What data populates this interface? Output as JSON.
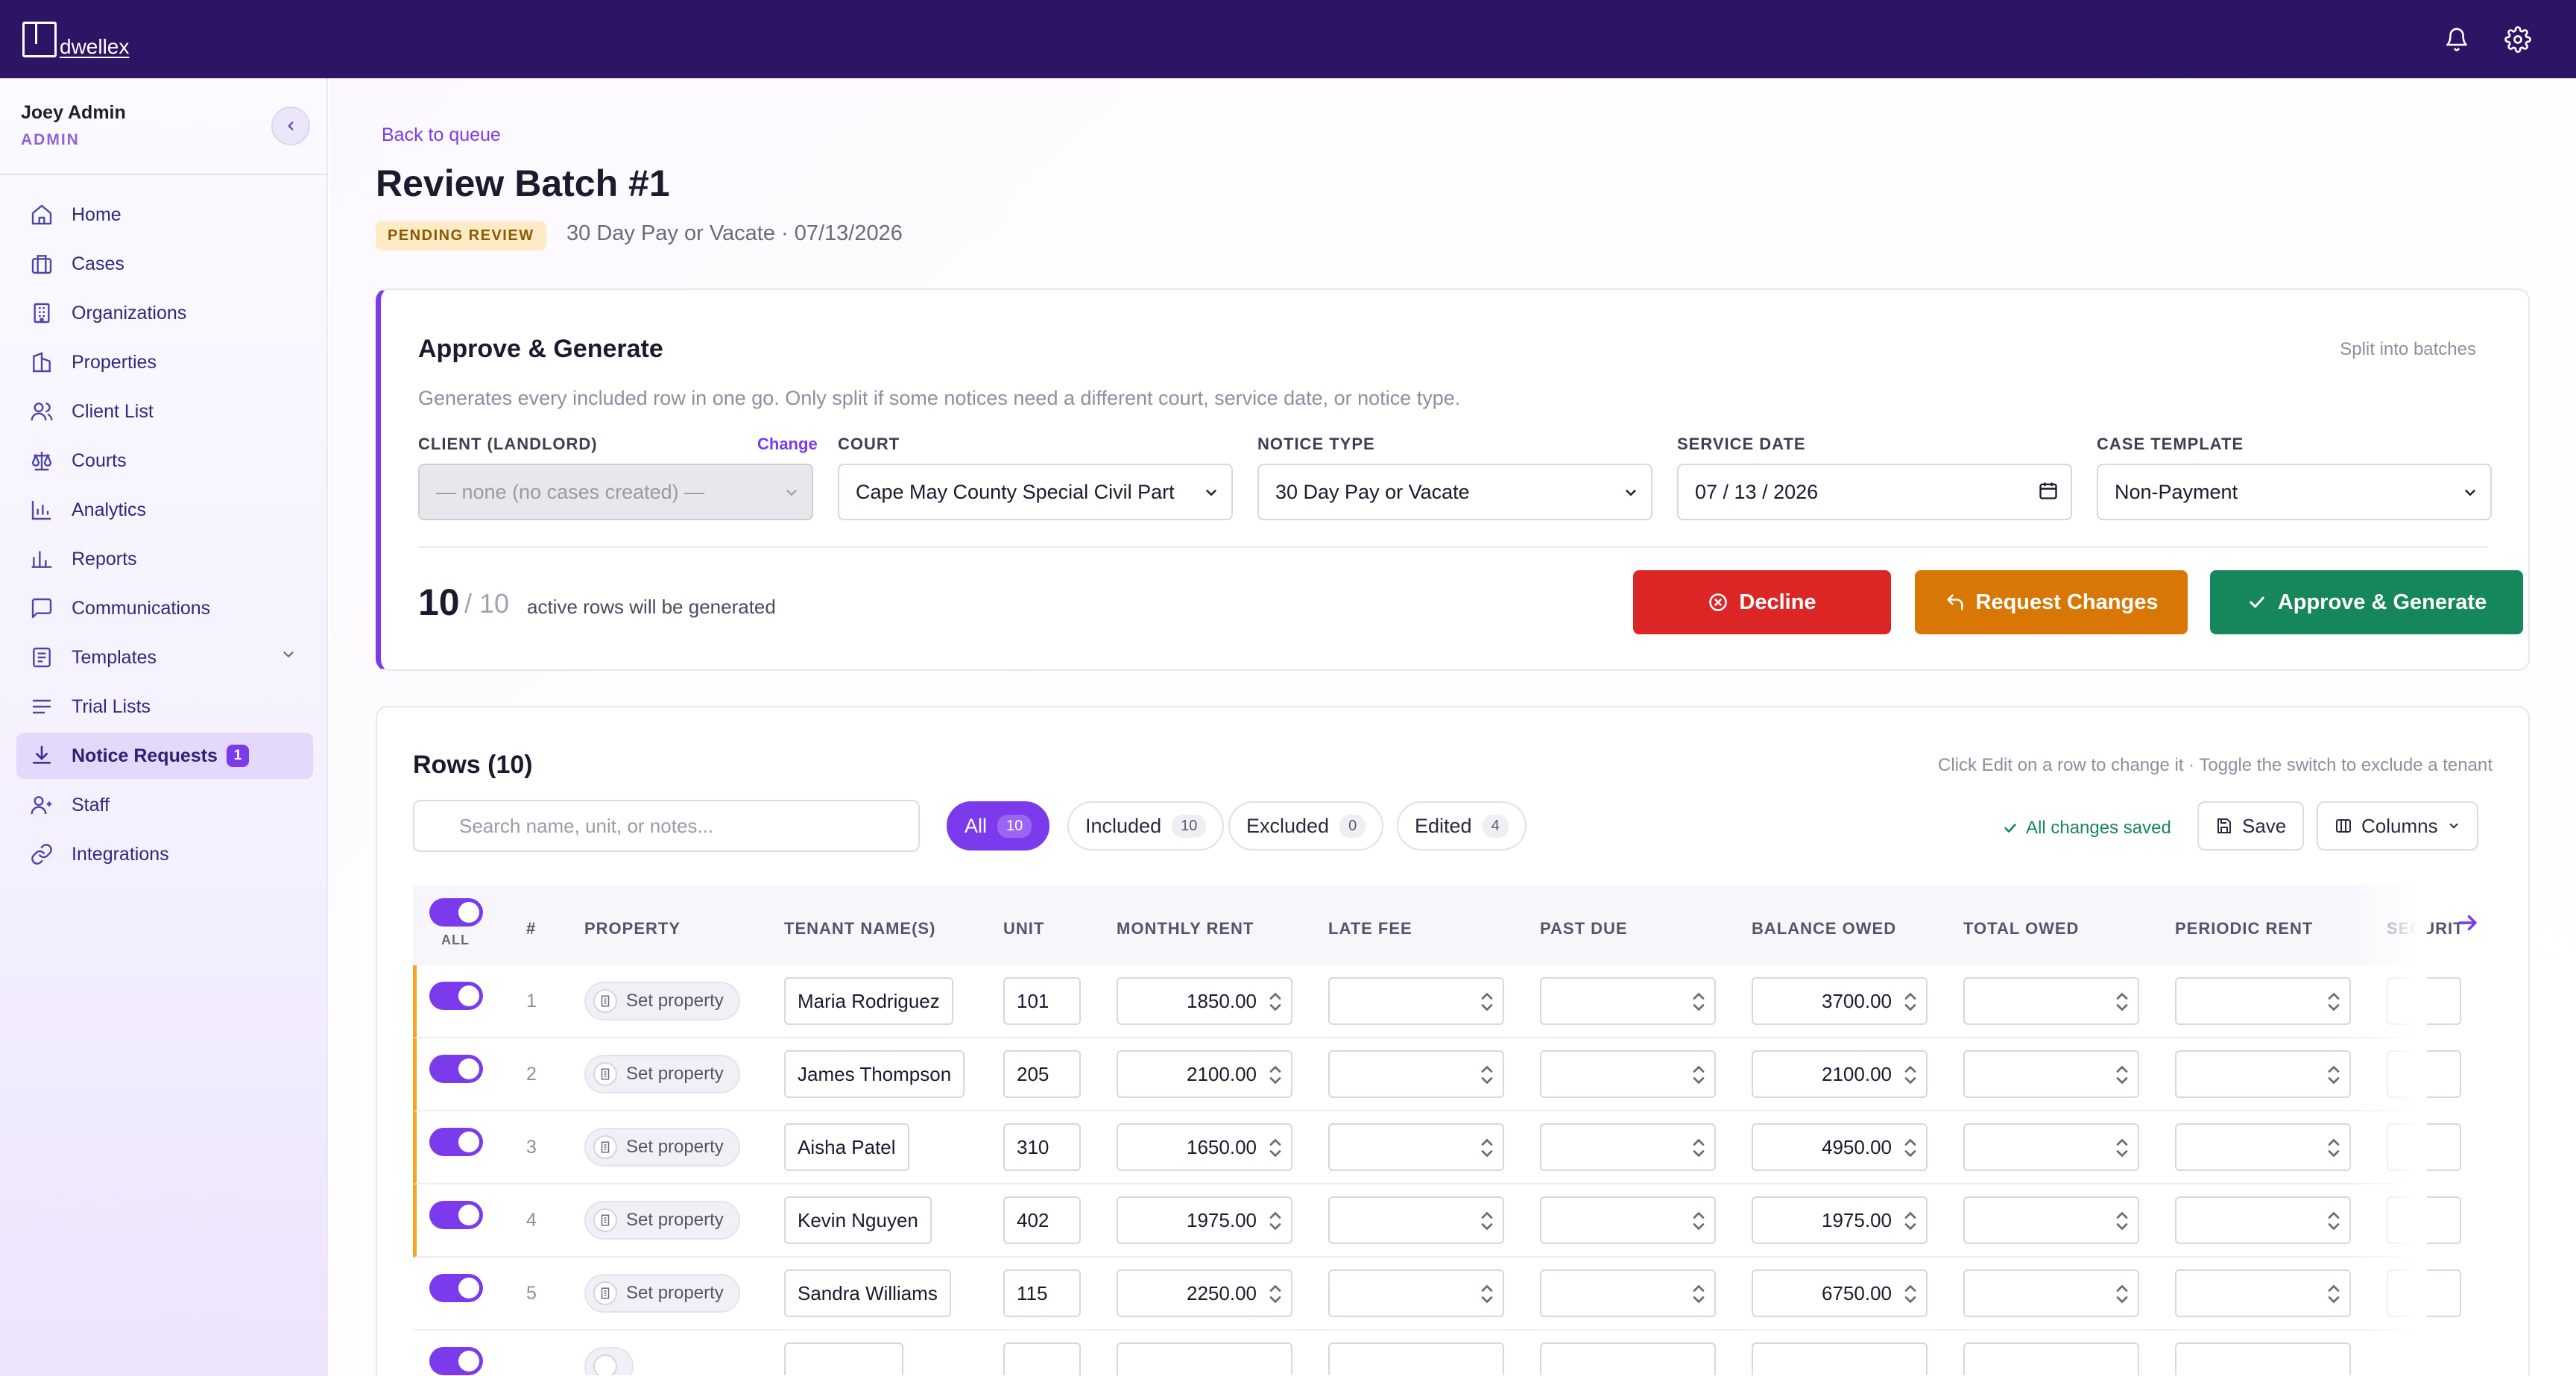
{
  "app": {
    "brand": "dwellex"
  },
  "topbar": {
    "notifications_icon": "bell-icon",
    "settings_icon": "gear-icon"
  },
  "user": {
    "name": "Joey Admin",
    "role": "ADMIN"
  },
  "sidebar": {
    "items": [
      {
        "label": "Home",
        "icon": "home-icon"
      },
      {
        "label": "Cases",
        "icon": "briefcase-icon"
      },
      {
        "label": "Organizations",
        "icon": "building-icon"
      },
      {
        "label": "Properties",
        "icon": "buildings-icon"
      },
      {
        "label": "Client List",
        "icon": "users-icon"
      },
      {
        "label": "Courts",
        "icon": "scale-icon"
      },
      {
        "label": "Analytics",
        "icon": "bar-chart-icon"
      },
      {
        "label": "Reports",
        "icon": "report-icon"
      },
      {
        "label": "Communications",
        "icon": "message-icon"
      },
      {
        "label": "Templates",
        "icon": "list-icon"
      },
      {
        "label": "Trial Lists",
        "icon": "clipboard-icon"
      },
      {
        "label": "Notice Requests",
        "icon": "download-icon",
        "badge": "1"
      },
      {
        "label": "Staff",
        "icon": "staff-icon"
      },
      {
        "label": "Integrations",
        "icon": "link-icon"
      }
    ]
  },
  "page": {
    "back": "Back to queue",
    "title": "Review Batch #1",
    "status": "PENDING REVIEW",
    "subtitle": "30 Day Pay or Vacate · 07/13/2026"
  },
  "approve": {
    "title": "Approve & Generate",
    "split": "Split into batches",
    "description": "Generates every included row in one go. Only split if some notices need a different court, service date, or notice type.",
    "client_label": "CLIENT (LANDLORD)",
    "change": "Change",
    "client_value": "— none (no cases created) —",
    "court_label": "COURT",
    "court_value": "Cape May County Special Civil Part",
    "notice_label": "NOTICE TYPE",
    "notice_value": "30 Day Pay or Vacate",
    "date_label": "SERVICE DATE",
    "date_value": "07 / 13 / 2026",
    "template_label": "CASE TEMPLATE",
    "template_value": "Non-Payment",
    "count": "10",
    "count_total": "/ 10",
    "count_text": "active rows will be generated",
    "decline": "Decline",
    "request": "Request Changes",
    "approve": "Approve & Generate"
  },
  "rows": {
    "title": "Rows (10)",
    "hint": "Click Edit on a row to change it · Toggle the switch to exclude a tenant",
    "search_placeholder": "Search name, unit, or notes...",
    "filters": [
      {
        "label": "All",
        "count": "10"
      },
      {
        "label": "Included",
        "count": "10"
      },
      {
        "label": "Excluded",
        "count": "0"
      },
      {
        "label": "Edited",
        "count": "4"
      }
    ],
    "saved": "All changes saved",
    "save": "Save",
    "columns": "Columns",
    "all_label": "ALL",
    "headers": [
      "#",
      "PROPERTY",
      "TENANT NAME(S)",
      "UNIT",
      "MONTHLY RENT",
      "LATE FEE",
      "PAST DUE",
      "BALANCE OWED",
      "TOTAL OWED",
      "PERIODIC RENT",
      "SECURIT"
    ],
    "property_placeholder": "Set property",
    "data": [
      {
        "n": "1",
        "tenant": "Maria Rodriguez",
        "unit": "101",
        "rent": "1850.00",
        "balance": "3700.00",
        "edited": true
      },
      {
        "n": "2",
        "tenant": "James Thompson",
        "unit": "205",
        "rent": "2100.00",
        "balance": "2100.00",
        "edited": true
      },
      {
        "n": "3",
        "tenant": "Aisha Patel",
        "unit": "310",
        "rent": "1650.00",
        "balance": "4950.00",
        "edited": true
      },
      {
        "n": "4",
        "tenant": "Kevin Nguyen",
        "unit": "402",
        "rent": "1975.00",
        "balance": "1975.00",
        "edited": true
      },
      {
        "n": "5",
        "tenant": "Sandra Williams",
        "unit": "115",
        "rent": "2250.00",
        "balance": "6750.00",
        "edited": false
      }
    ]
  },
  "colors": {
    "brand": "#2e1464",
    "accent": "#7c3aed",
    "decline": "#dc2626",
    "request": "#d97706",
    "approve": "#15875a",
    "edited": "#f4a521"
  }
}
